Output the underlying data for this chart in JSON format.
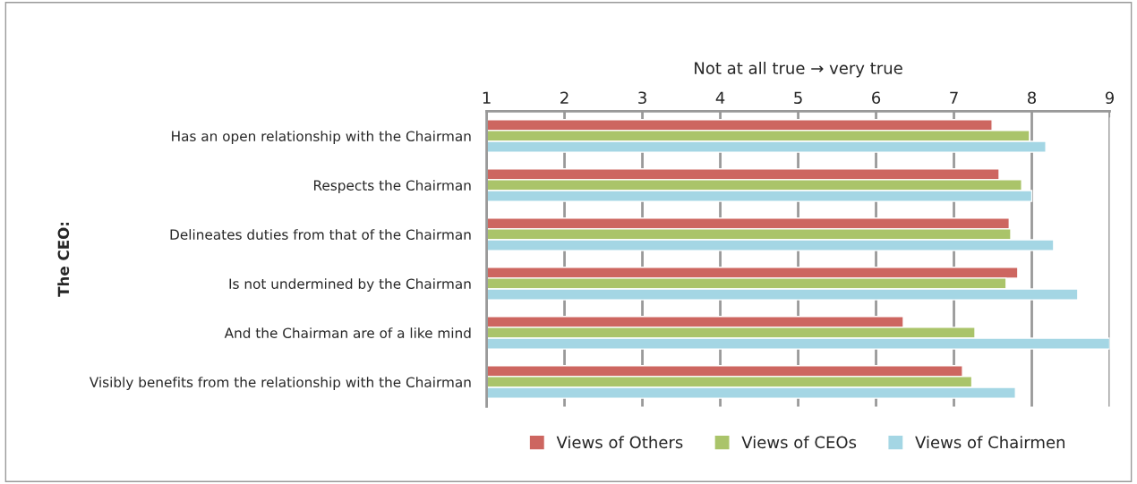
{
  "chart_data": {
    "type": "bar",
    "orientation": "horizontal",
    "xlabel": "Not at all true → very true",
    "ylabel": "The CEO:",
    "categories": [
      "Has an open relationship with the Chairman",
      "Respects the Chairman",
      "Delineates duties from that of the Chairman",
      "Is not undermined by the Chairman",
      "And the Chairman are of a like mind",
      "Visibly benefits from the relationship with the Chairman"
    ],
    "series": [
      {
        "name": "Views of Others",
        "color": "#cd6660",
        "values": [
          7.49,
          7.58,
          7.71,
          7.82,
          6.35,
          7.11
        ]
      },
      {
        "name": "Views of CEOs",
        "color": "#aac46a",
        "values": [
          7.97,
          7.87,
          7.73,
          7.67,
          7.27,
          7.23
        ]
      },
      {
        "name": "Views of Chairmen",
        "color": "#a4d6e4",
        "values": [
          8.18,
          8.0,
          8.28,
          8.59,
          9.0,
          7.79
        ]
      }
    ],
    "xlim": [
      1,
      9
    ],
    "xticks": [
      1,
      2,
      3,
      4,
      5,
      6,
      7,
      8,
      9
    ],
    "grid": "x",
    "legend": "bottom"
  }
}
